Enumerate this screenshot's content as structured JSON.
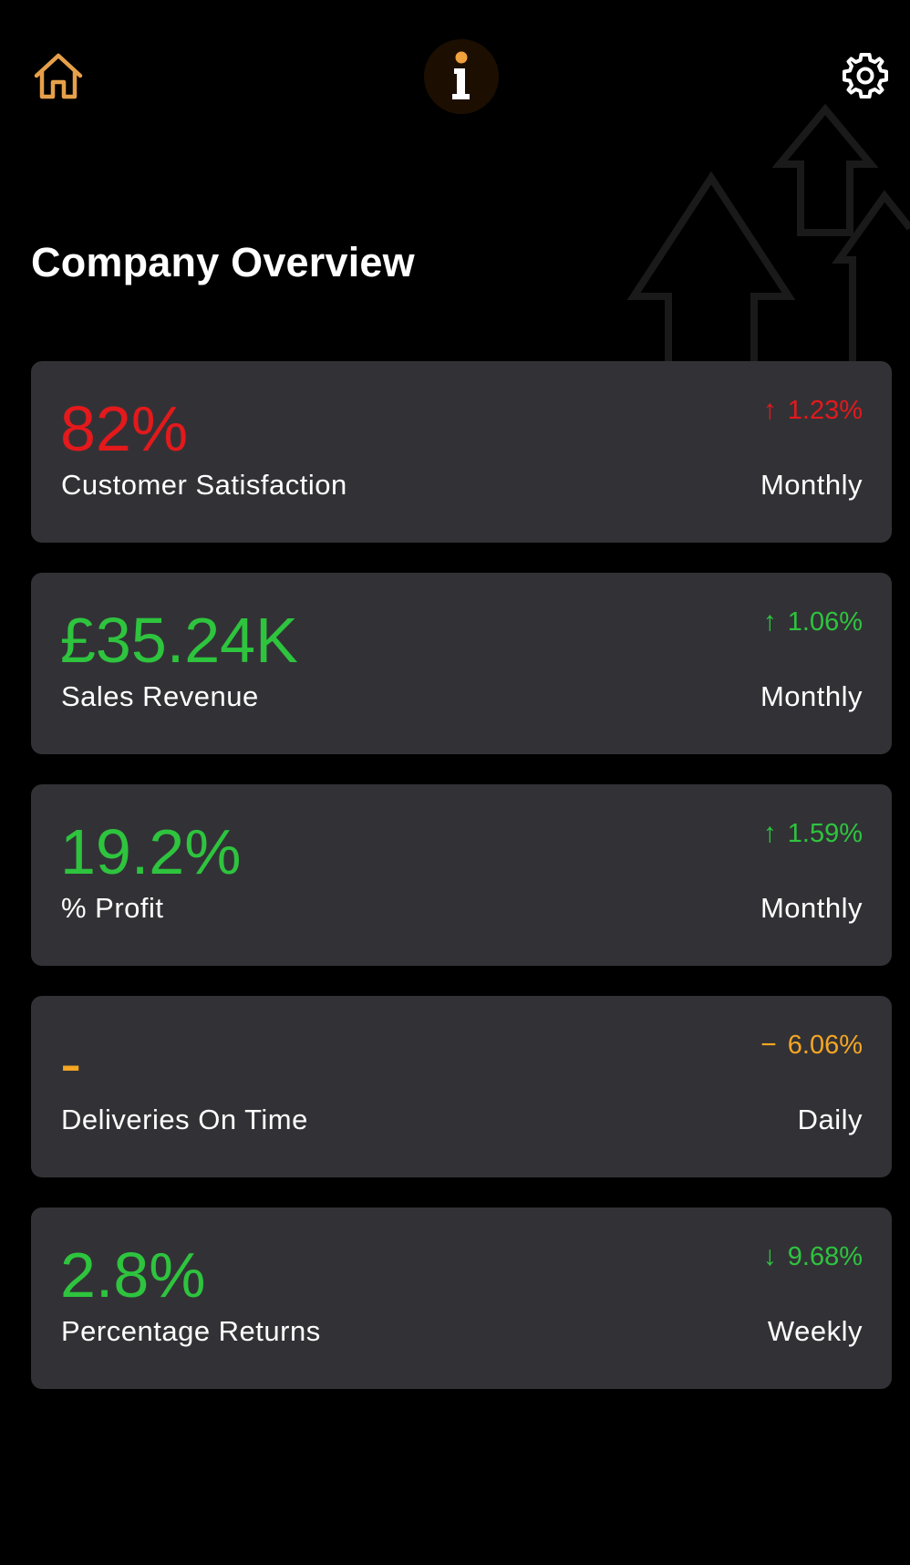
{
  "header": {
    "home_icon": "home-icon",
    "logo_icon": "info-logo-icon",
    "settings_icon": "gear-icon"
  },
  "page": {
    "title": "Company Overview"
  },
  "colors": {
    "background": "#000000",
    "card": "#323236",
    "red": "#e3191c",
    "green": "#2ec43e",
    "amber": "#f5a623",
    "home_icon": "#e6a04a",
    "logo_bg": "#1c0f02"
  },
  "cards": [
    {
      "value": "82%",
      "label": "Customer Satisfaction",
      "change_arrow": "↑",
      "change": "1.23%",
      "period": "Monthly",
      "color": "#e3191c"
    },
    {
      "value": "£35.24K",
      "label": "Sales Revenue",
      "change_arrow": "↑",
      "change": "1.06%",
      "period": "Monthly",
      "color": "#2ec43e"
    },
    {
      "value": "19.2%",
      "label": "% Profit",
      "change_arrow": "↑",
      "change": "1.59%",
      "period": "Monthly",
      "color": "#2ec43e"
    },
    {
      "value": "-",
      "label": "Deliveries On Time",
      "change_arrow": "−",
      "change": "6.06%",
      "period": "Daily",
      "color": "#f5a623"
    },
    {
      "value": "2.8%",
      "label": "Percentage Returns",
      "change_arrow": "↓",
      "change": "9.68%",
      "period": "Weekly",
      "color": "#2ec43e"
    }
  ]
}
